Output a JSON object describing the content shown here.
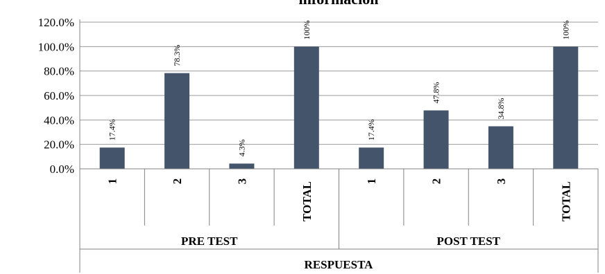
{
  "chart_data": {
    "type": "bar",
    "title": "información",
    "xlabel": "RESPUESTA",
    "ylabel": "",
    "ylim": [
      0,
      120
    ],
    "y_ticks": [
      "0.0%",
      "20.0%",
      "40.0%",
      "60.0%",
      "80.0%",
      "100.0%",
      "120.0%"
    ],
    "grid": true,
    "legend": "none",
    "bar_color": "#44546a",
    "groups": [
      {
        "name": "PRE TEST",
        "categories": [
          "1",
          "2",
          "3",
          "TOTAL"
        ],
        "values": [
          17.4,
          78.3,
          4.3,
          100
        ],
        "labels": [
          "17.4%",
          "78.3%",
          "4.3%",
          "100%"
        ]
      },
      {
        "name": "POST TEST",
        "categories": [
          "1",
          "2",
          "3",
          "TOTAL"
        ],
        "values": [
          17.4,
          47.8,
          34.8,
          100
        ],
        "labels": [
          "17.4%",
          "47.8%",
          "34.8%",
          "100%"
        ]
      }
    ]
  }
}
